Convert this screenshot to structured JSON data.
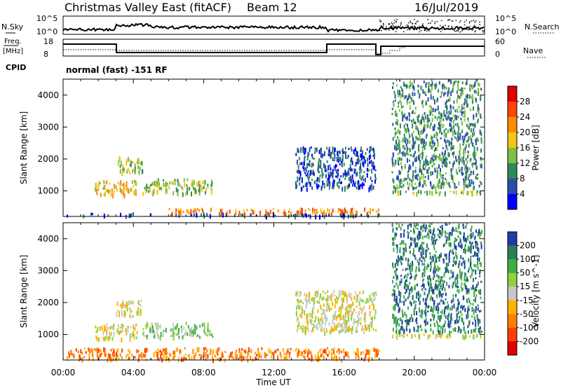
{
  "header": {
    "title": "Christmas Valley East (fitACF)",
    "beam": "Beam 12",
    "date": "16/Jul/2019"
  },
  "sky_panel": {
    "left_label": "N.Sky",
    "left_ticks": [
      "10^5",
      "10^0"
    ],
    "right_label": "N.Search",
    "right_ticks": [
      "10^5",
      "10^0"
    ]
  },
  "freq_panel": {
    "left_label_top": "Freq.",
    "left_label_unit": "[MHz]",
    "left_ticks": [
      "18",
      "8"
    ],
    "right_label": "Nave",
    "right_ticks": [
      "60",
      "0"
    ],
    "cpid_label": "CPID",
    "cpid_text": "normal (fast) -151 RF"
  },
  "chart_data": [
    {
      "type": "heatmap",
      "name": "power",
      "ylabel": "Slant Range [km]",
      "yticks": [
        "1000",
        "2000",
        "3000",
        "4000"
      ],
      "ylim": [
        200,
        4500
      ],
      "xlim": [
        0,
        24
      ],
      "colorbar_label": "Power [dB]",
      "colorbar_ticks": [
        "4",
        "8",
        "12",
        "16",
        "20",
        "24",
        "28"
      ],
      "colors": [
        "#0000ff",
        "#2d4ea8",
        "#2e8b57",
        "#7cc242",
        "#f5c518",
        "#ff8c00",
        "#ff4500",
        "#e00000"
      ],
      "regions": [
        {
          "t": [
            0.2,
            18.0
          ],
          "r": [
            250,
            320
          ],
          "level": 1
        },
        {
          "t": [
            6.0,
            18.0
          ],
          "r": [
            320,
            480
          ],
          "level": 5
        },
        {
          "t": [
            1.8,
            4.2
          ],
          "r": [
            900,
            1350
          ],
          "level": 4
        },
        {
          "t": [
            4.5,
            8.5
          ],
          "r": [
            950,
            1400
          ],
          "level": 3
        },
        {
          "t": [
            3.0,
            4.5
          ],
          "r": [
            1600,
            2100
          ],
          "level": 3
        },
        {
          "t": [
            13.2,
            17.8
          ],
          "r": [
            1100,
            2400
          ],
          "level": 1
        },
        {
          "t": [
            18.7,
            23.8
          ],
          "r": [
            960,
            1030
          ],
          "level": 3
        },
        {
          "t": [
            18.7,
            23.8
          ],
          "r": [
            1100,
            4500
          ],
          "level": 2
        }
      ]
    },
    {
      "type": "heatmap",
      "name": "velocity",
      "ylabel": "Slant Range [km]",
      "yticks": [
        "1000",
        "2000",
        "3000",
        "4000"
      ],
      "ylim": [
        200,
        4500
      ],
      "xlim": [
        0,
        24
      ],
      "xticks": [
        "00:00",
        "04:00",
        "08:00",
        "12:00",
        "16:00",
        "20:00",
        "00:00"
      ],
      "xlabel": "Time UT",
      "colorbar_label": "Velocity [m s^-1]",
      "colorbar_ticks": [
        "200",
        "100",
        "50",
        "15",
        "-15",
        "-50",
        "-100",
        "-200"
      ],
      "colors": [
        "#1e3ca8",
        "#2e7d5a",
        "#3cb044",
        "#8fd13f",
        "#c8c8c8",
        "#ffb300",
        "#ff8000",
        "#ff4000",
        "#e00000"
      ],
      "regions": [
        {
          "t": [
            0.2,
            18.0
          ],
          "r": [
            250,
            600
          ],
          "level": 6
        },
        {
          "t": [
            1.8,
            4.2
          ],
          "r": [
            900,
            1350
          ],
          "level": 4
        },
        {
          "t": [
            4.5,
            8.5
          ],
          "r": [
            950,
            1400
          ],
          "level": 3
        },
        {
          "t": [
            3.0,
            4.5
          ],
          "r": [
            1600,
            2100
          ],
          "level": 4
        },
        {
          "t": [
            13.2,
            17.8
          ],
          "r": [
            1100,
            2400
          ],
          "level": 4
        },
        {
          "t": [
            18.7,
            23.8
          ],
          "r": [
            960,
            1030
          ],
          "level": 4
        },
        {
          "t": [
            18.7,
            23.8
          ],
          "r": [
            1100,
            4500
          ],
          "level": 1
        }
      ]
    }
  ]
}
